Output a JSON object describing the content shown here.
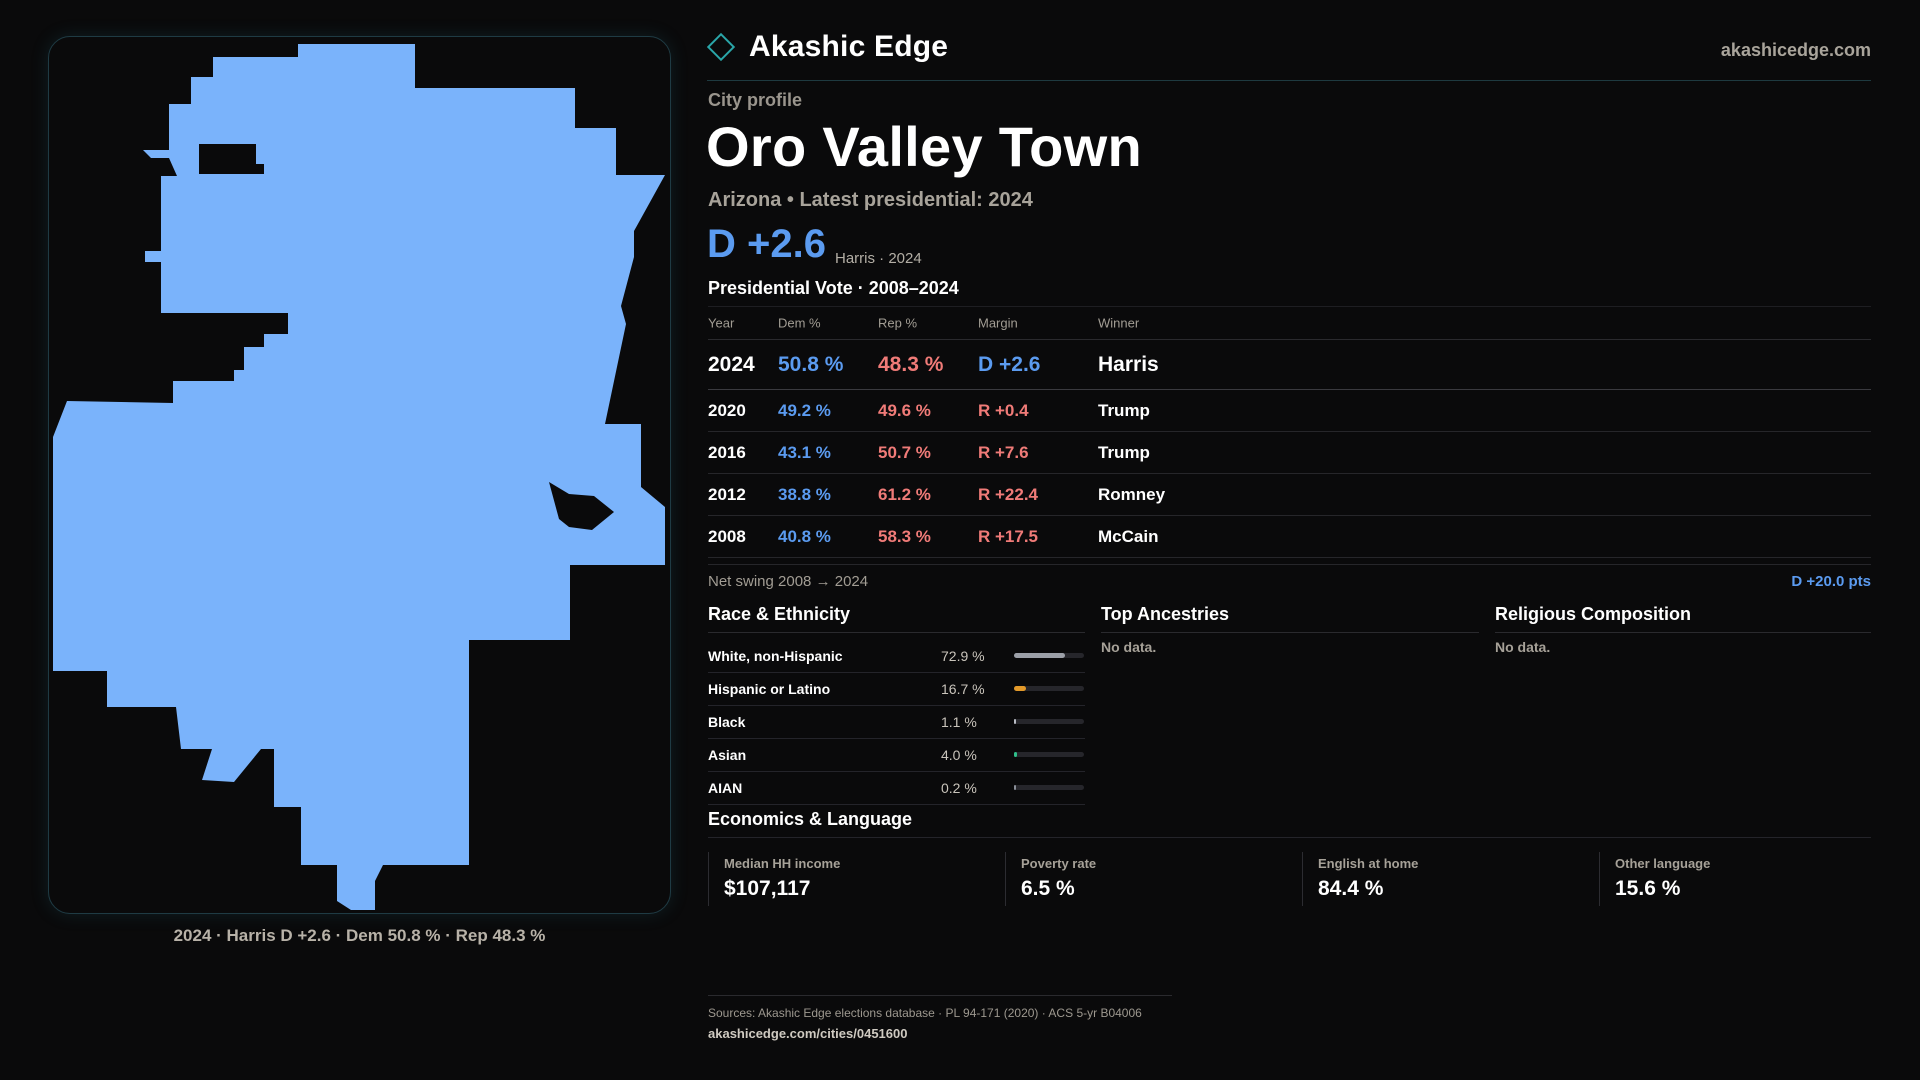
{
  "brand": {
    "name": "Akashic Edge",
    "site": "akashicedge.com"
  },
  "map": {
    "caption": "2024 · Harris D +2.6 · Dem 50.8 % · Rep 48.3 %",
    "fill_color": "#7ab3fb"
  },
  "profile": {
    "kicker": "City profile",
    "title": "Oro Valley Town",
    "subtitle": "Arizona • Latest presidential: 2024",
    "margin": "D +2.6",
    "margin_note": "Harris · 2024"
  },
  "vote": {
    "title": "Presidential Vote · 2008–2024",
    "headers": {
      "year": "Year",
      "dem": "Dem %",
      "rep": "Rep %",
      "margin": "Margin",
      "winner": "Winner"
    },
    "rows": [
      {
        "year": "2024",
        "dem": "50.8 %",
        "rep": "48.3 %",
        "margin": "D +2.6",
        "margin_party": "dem",
        "winner": "Harris"
      },
      {
        "year": "2020",
        "dem": "49.2 %",
        "rep": "49.6 %",
        "margin": "R +0.4",
        "margin_party": "rep",
        "winner": "Trump"
      },
      {
        "year": "2016",
        "dem": "43.1 %",
        "rep": "50.7 %",
        "margin": "R +7.6",
        "margin_party": "rep",
        "winner": "Trump"
      },
      {
        "year": "2012",
        "dem": "38.8 %",
        "rep": "61.2 %",
        "margin": "R +22.4",
        "margin_party": "rep",
        "winner": "Romney"
      },
      {
        "year": "2008",
        "dem": "40.8 %",
        "rep": "58.3 %",
        "margin": "R +17.5",
        "margin_party": "rep",
        "winner": "McCain"
      }
    ],
    "swing_label": "Net swing 2008 → 2024",
    "swing_value": "D +20.0 pts"
  },
  "race": {
    "title": "Race & Ethnicity",
    "items": [
      {
        "name": "White, non-Hispanic",
        "pct": "72.9 %",
        "value": 72.9,
        "color": "#9ca0a8"
      },
      {
        "name": "Hispanic or Latino",
        "pct": "16.7 %",
        "value": 16.7,
        "color": "#e39a2a"
      },
      {
        "name": "Black",
        "pct": "1.1 %",
        "value": 1.1,
        "color": "#b9bcc4"
      },
      {
        "name": "Asian",
        "pct": "4.0 %",
        "value": 4.0,
        "color": "#2fbf8a"
      },
      {
        "name": "AIAN",
        "pct": "0.2 %",
        "value": 0.2,
        "color": "#8a8f98"
      }
    ]
  },
  "ancestries": {
    "title": "Top Ancestries",
    "empty": "No data."
  },
  "religion": {
    "title": "Religious Composition",
    "empty": "No data."
  },
  "economics": {
    "title": "Economics & Language",
    "items": [
      {
        "label": "Median HH income",
        "value": "$107,117"
      },
      {
        "label": "Poverty rate",
        "value": "6.5 %"
      },
      {
        "label": "English at home",
        "value": "84.4 %"
      },
      {
        "label": "Other language",
        "value": "15.6 %"
      }
    ]
  },
  "footer": {
    "sources": "Sources: Akashic Edge elections database · PL 94-171 (2020) · ACS 5-yr B04006",
    "url": "akashicedge.com/cities/0451600"
  },
  "colors": {
    "dem": "#5b9bf0",
    "rep": "#f07b78",
    "accent": "#2aa6a9"
  }
}
